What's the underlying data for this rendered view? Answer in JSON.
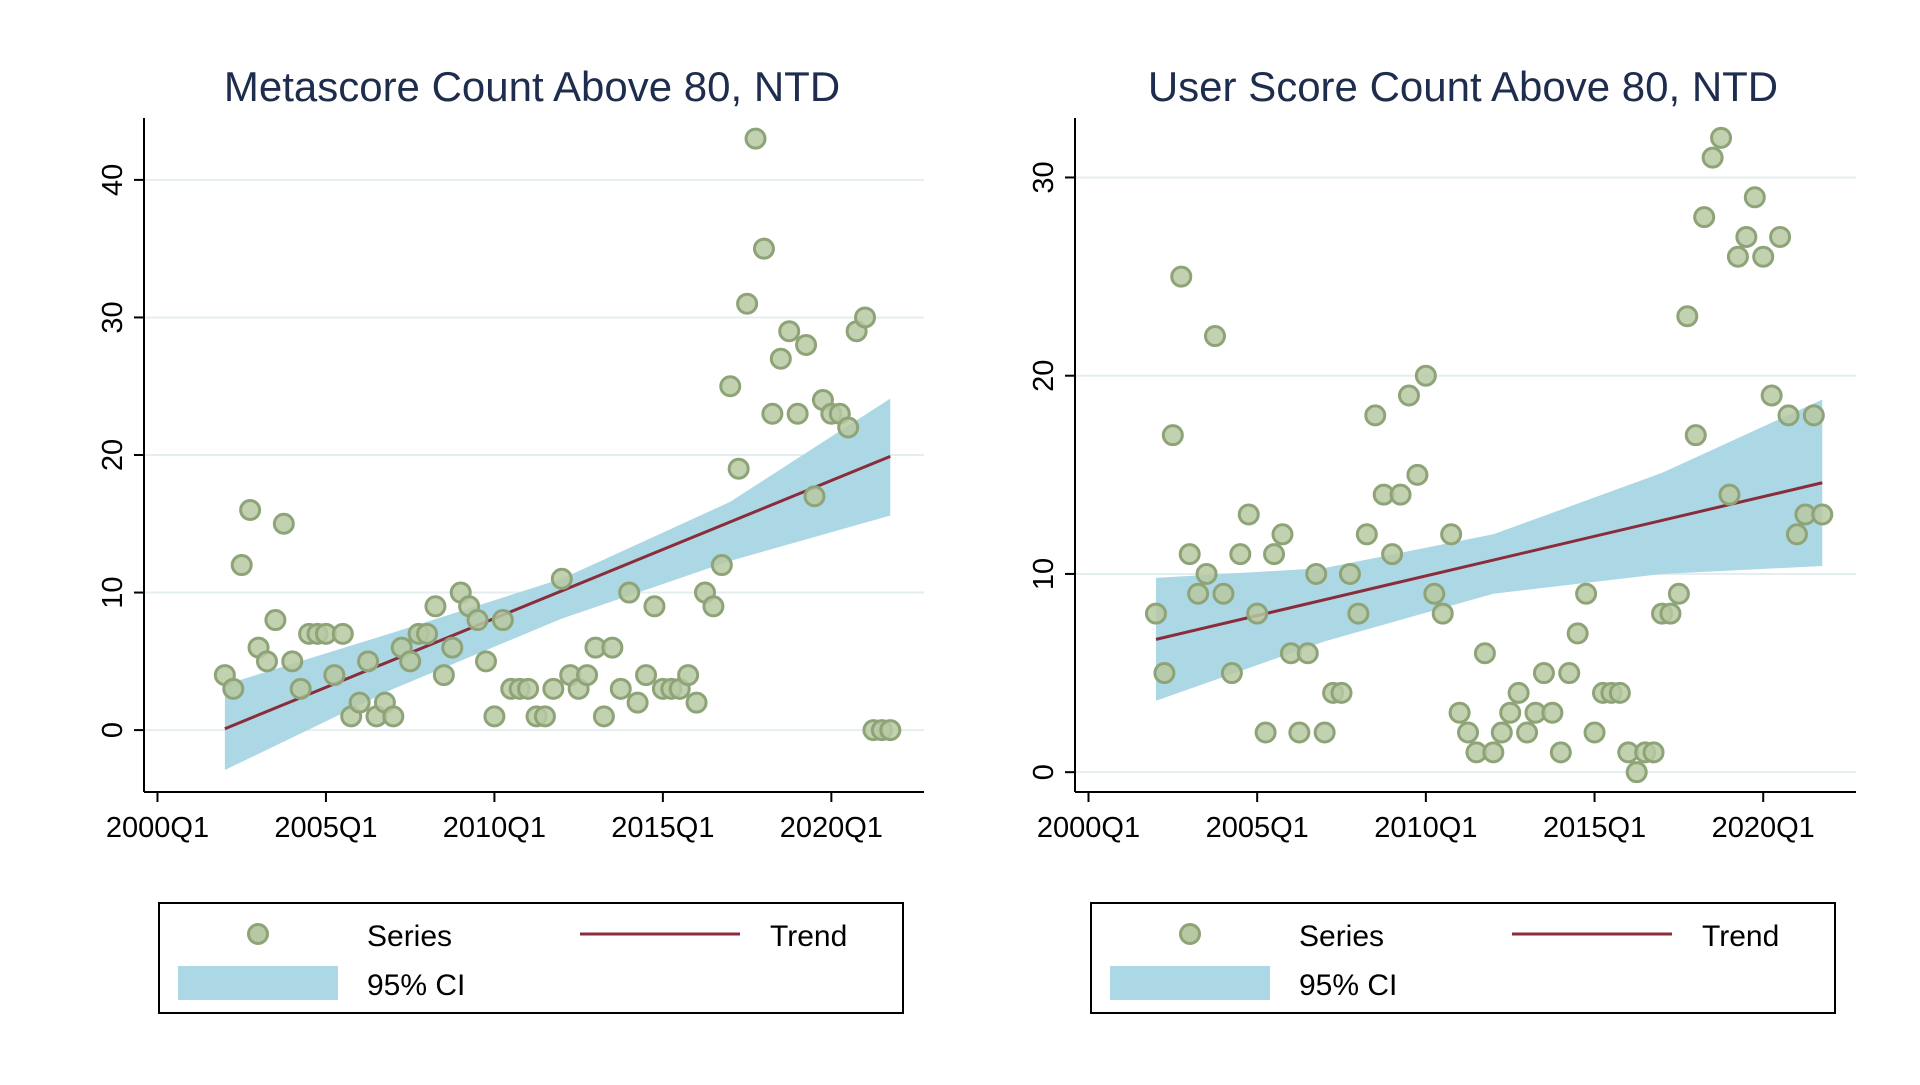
{
  "colors": {
    "marker_fill": "#b7c9a2",
    "marker_stroke": "#8ea377",
    "trend": "#8b2c3a",
    "ci": "#acd8e5",
    "grid": "#e4eeee",
    "title": "#1e2d4d"
  },
  "chart_data": [
    {
      "type": "scatter",
      "title": "Metascore Count Above 80, NTD",
      "xlabel": "",
      "ylabel": "",
      "x_unit": "year-quarter",
      "xlim": [
        1999.6,
        2022.75
      ],
      "ylim": [
        -4.5,
        44.5
      ],
      "x_ticks": [
        2000,
        2005,
        2010,
        2015,
        2020
      ],
      "x_tick_labels": [
        "2000Q1",
        "2005Q1",
        "2010Q1",
        "2015Q1",
        "2020Q1"
      ],
      "y_ticks": [
        0,
        10,
        20,
        30,
        40
      ],
      "y_tick_labels": [
        "0",
        "10",
        "20",
        "30",
        "40"
      ],
      "grid": true,
      "legend_position": "bottom",
      "series": [
        {
          "name": "Series",
          "kind": "scatter",
          "x": [
            2002.0,
            2002.25,
            2002.5,
            2002.75,
            2003.0,
            2003.25,
            2003.5,
            2003.75,
            2004.0,
            2004.25,
            2004.5,
            2004.75,
            2005.0,
            2005.25,
            2005.5,
            2005.75,
            2006.0,
            2006.25,
            2006.5,
            2006.75,
            2007.0,
            2007.25,
            2007.5,
            2007.75,
            2008.0,
            2008.25,
            2008.5,
            2008.75,
            2009.0,
            2009.25,
            2009.5,
            2009.75,
            2010.0,
            2010.25,
            2010.5,
            2010.75,
            2011.0,
            2011.25,
            2011.5,
            2011.75,
            2012.0,
            2012.25,
            2012.5,
            2012.75,
            2013.0,
            2013.25,
            2013.5,
            2013.75,
            2014.0,
            2014.25,
            2014.5,
            2014.75,
            2015.0,
            2015.25,
            2015.5,
            2015.75,
            2016.0,
            2016.25,
            2016.5,
            2016.75,
            2017.0,
            2017.25,
            2017.5,
            2017.75,
            2018.0,
            2018.25,
            2018.5,
            2018.75,
            2019.0,
            2019.25,
            2019.5,
            2019.75,
            2020.0,
            2020.25,
            2020.5,
            2020.75,
            2021.0,
            2021.25,
            2021.5,
            2021.75
          ],
          "y": [
            4,
            3,
            12,
            16,
            6,
            5,
            8,
            15,
            5,
            3,
            7,
            7,
            7,
            4,
            7,
            1,
            2,
            5,
            1,
            2,
            1,
            6,
            5,
            7,
            7,
            9,
            4,
            6,
            10,
            9,
            8,
            5,
            1,
            8,
            3,
            3,
            3,
            1,
            1,
            3,
            11,
            4,
            3,
            4,
            6,
            1,
            6,
            3,
            10,
            2,
            4,
            9,
            3,
            3,
            3,
            4,
            2,
            10,
            9,
            12,
            25,
            19,
            31,
            43,
            35,
            23,
            27,
            29,
            23,
            28,
            17,
            24,
            23,
            23,
            22,
            29,
            30,
            0,
            0,
            0
          ]
        },
        {
          "name": "Trend",
          "kind": "line",
          "x": [
            2002.0,
            2021.75
          ],
          "y": [
            0.1,
            19.9
          ]
        },
        {
          "name": "95% CI",
          "kind": "band",
          "x": [
            2002.0,
            2007.0,
            2012.0,
            2017.0,
            2021.75
          ],
          "lower": [
            -2.9,
            3.0,
            8.1,
            12.3,
            15.6
          ],
          "upper": [
            3.3,
            7.1,
            11.0,
            16.6,
            24.1
          ]
        }
      ]
    },
    {
      "type": "scatter",
      "title": "User Score Count Above 80, NTD",
      "xlabel": "",
      "ylabel": "",
      "x_unit": "year-quarter",
      "xlim": [
        1999.6,
        2022.75
      ],
      "ylim": [
        -1.0,
        33.0
      ],
      "x_ticks": [
        2000,
        2005,
        2010,
        2015,
        2020
      ],
      "x_tick_labels": [
        "2000Q1",
        "2005Q1",
        "2010Q1",
        "2015Q1",
        "2020Q1"
      ],
      "y_ticks": [
        0,
        10,
        20,
        30
      ],
      "y_tick_labels": [
        "0",
        "10",
        "20",
        "30"
      ],
      "grid": true,
      "legend_position": "bottom",
      "series": [
        {
          "name": "Series",
          "kind": "scatter",
          "x": [
            2002.0,
            2002.25,
            2002.5,
            2002.75,
            2003.0,
            2003.25,
            2003.5,
            2003.75,
            2004.0,
            2004.25,
            2004.5,
            2004.75,
            2005.0,
            2005.25,
            2005.5,
            2005.75,
            2006.0,
            2006.25,
            2006.5,
            2006.75,
            2007.0,
            2007.25,
            2007.5,
            2007.75,
            2008.0,
            2008.25,
            2008.5,
            2008.75,
            2009.0,
            2009.25,
            2009.5,
            2009.75,
            2010.0,
            2010.25,
            2010.5,
            2010.75,
            2011.0,
            2011.25,
            2011.5,
            2011.75,
            2012.0,
            2012.25,
            2012.5,
            2012.75,
            2013.0,
            2013.25,
            2013.5,
            2013.75,
            2014.0,
            2014.25,
            2014.5,
            2014.75,
            2015.0,
            2015.25,
            2015.5,
            2015.75,
            2016.0,
            2016.25,
            2016.5,
            2016.75,
            2017.0,
            2017.25,
            2017.5,
            2017.75,
            2018.0,
            2018.25,
            2018.5,
            2018.75,
            2019.0,
            2019.25,
            2019.5,
            2019.75,
            2020.0,
            2020.25,
            2020.5,
            2020.75,
            2021.0,
            2021.25,
            2021.5,
            2021.75
          ],
          "y": [
            8,
            5,
            17,
            25,
            11,
            9,
            10,
            22,
            9,
            5,
            11,
            13,
            8,
            2,
            11,
            12,
            6,
            2,
            6,
            10,
            2,
            4,
            4,
            10,
            8,
            12,
            18,
            14,
            11,
            14,
            19,
            15,
            20,
            9,
            8,
            12,
            3,
            2,
            1,
            6,
            1,
            2,
            3,
            4,
            2,
            3,
            5,
            3,
            1,
            5,
            7,
            9,
            2,
            4,
            4,
            4,
            1,
            0,
            1,
            1,
            8,
            8,
            9,
            23,
            17,
            28,
            31,
            32,
            14,
            26,
            27,
            29,
            26,
            19,
            27,
            18,
            12,
            13,
            18,
            13
          ]
        },
        {
          "name": "Trend",
          "kind": "line",
          "x": [
            2002.0,
            2021.75
          ],
          "y": [
            6.7,
            14.6
          ]
        },
        {
          "name": "95% CI",
          "kind": "band",
          "x": [
            2002.0,
            2007.0,
            2012.0,
            2017.0,
            2021.75
          ],
          "lower": [
            3.6,
            6.6,
            9.0,
            10.0,
            10.4
          ],
          "upper": [
            9.8,
            10.3,
            12.0,
            15.1,
            18.8
          ]
        }
      ]
    }
  ]
}
